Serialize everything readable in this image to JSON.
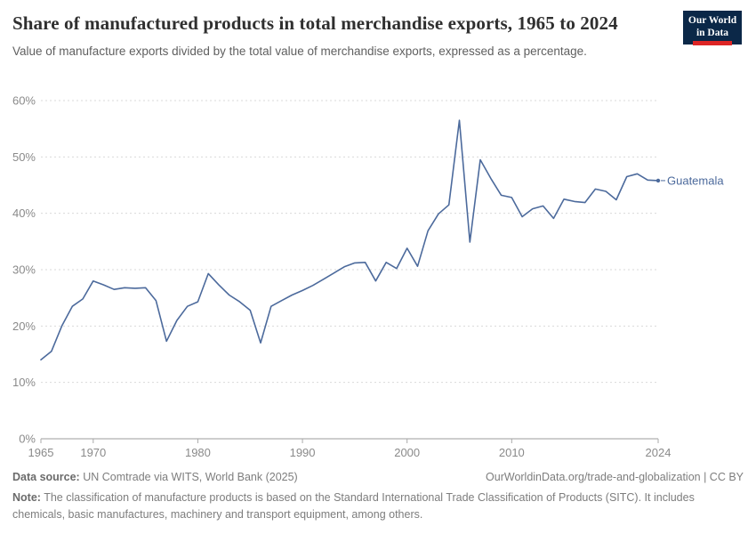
{
  "header": {
    "title": "Share of manufactured products in total merchandise exports, 1965 to 2024",
    "subtitle": "Value of manufacture exports divided by the total value of merchandise exports, expressed as a percentage.",
    "logo_line1": "Our World",
    "logo_line2": "in Data"
  },
  "chart_data": {
    "type": "line",
    "title": "Share of manufactured products in total merchandise exports, 1965 to 2024",
    "xlabel": "",
    "ylabel": "",
    "xlim": [
      1965,
      2024
    ],
    "ylim": [
      0,
      60
    ],
    "y_suffix": "%",
    "grid": "dashed-horizontal",
    "legend_position": "end-of-line",
    "xticks": [
      1965,
      1970,
      1980,
      1990,
      2000,
      2010,
      2024
    ],
    "yticks": [
      0,
      10,
      20,
      30,
      40,
      50,
      60
    ],
    "series": [
      {
        "name": "Guatemala",
        "color": "#4C6A9C",
        "x": [
          1965,
          1966,
          1967,
          1968,
          1969,
          1970,
          1971,
          1972,
          1973,
          1974,
          1975,
          1976,
          1977,
          1978,
          1979,
          1980,
          1981,
          1982,
          1983,
          1984,
          1985,
          1986,
          1987,
          1988,
          1989,
          1990,
          1991,
          1992,
          1993,
          1994,
          1995,
          1996,
          1997,
          1998,
          1999,
          2000,
          2001,
          2002,
          2003,
          2004,
          2005,
          2006,
          2007,
          2008,
          2009,
          2010,
          2011,
          2012,
          2013,
          2014,
          2015,
          2016,
          2017,
          2018,
          2019,
          2020,
          2021,
          2022,
          2023,
          2024
        ],
        "values": [
          14,
          15.5,
          20,
          23.5,
          24.8,
          28,
          27.3,
          26.5,
          26.8,
          26.7,
          26.8,
          24.5,
          17.3,
          21,
          23.5,
          24.3,
          29.3,
          27.3,
          25.5,
          24.3,
          22.8,
          17,
          23.5,
          24.5,
          25.5,
          26.3,
          27.2,
          28.3,
          29.4,
          30.5,
          31.2,
          31.3,
          28,
          31.3,
          30.2,
          33.8,
          30.6,
          36.9,
          39.9,
          41.5,
          56.5,
          34.9,
          49.5,
          46.2,
          43.2,
          42.8,
          39.4,
          40.8,
          41.3,
          39.1,
          42.5,
          42.1,
          41.9,
          44.3,
          43.9,
          42.4,
          46.5,
          47,
          45.9,
          45.8
        ]
      }
    ]
  },
  "footer": {
    "source_label": "Data source:",
    "source_text": " UN Comtrade via WITS, World Bank (2025)",
    "rights": "OurWorldinData.org/trade-and-globalization | CC BY",
    "note_label": "Note:",
    "note_text": " The classification of manufacture products is based on the Standard International Trade Classification of Products (SITC). It includes chemicals, basic manufactures, machinery and transport equipment, among others."
  },
  "colors": {
    "line": "#4C6A9C",
    "grid": "#d9d9d9",
    "axis_line": "#9b9b9b",
    "tick_text": "#8a8a8a",
    "logo_navy": "#0b2848",
    "logo_red": "#dd2525"
  }
}
